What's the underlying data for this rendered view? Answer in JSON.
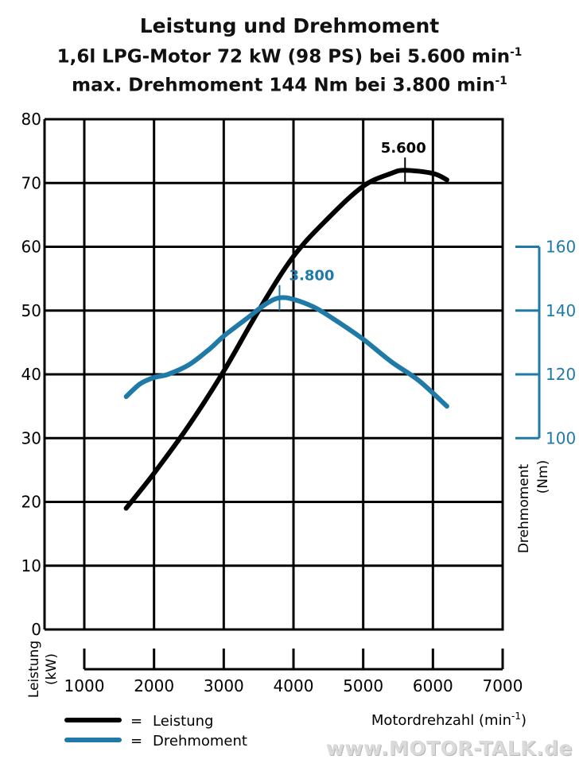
{
  "title": {
    "line1": "Leistung und Drehmoment",
    "line2_main": "1,6l LPG-Motor 72 kW (98 PS) bei 5.600 min",
    "line2_sup": "-1",
    "line3_main": "max. Drehmoment 144 Nm bei 3.800 min",
    "line3_sup": "-1"
  },
  "colors": {
    "power": "#000000",
    "torque": "#1f7aa8",
    "grid": "#000000"
  },
  "chart_data": {
    "type": "line",
    "xlabel": "Motordrehzahl (min",
    "xlabel_sup": "-1",
    "xlabel_end": ")",
    "ylabel_left_line1": "Leistung",
    "ylabel_left_line2": "(kW)",
    "ylabel_right_line1": "Drehmoment",
    "ylabel_right_line2": "(Nm)",
    "xlim": [
      1000,
      7000
    ],
    "ylim_left": [
      0,
      80
    ],
    "ylim_right": [
      100,
      160
    ],
    "x_ticks": [
      1000,
      2000,
      3000,
      4000,
      5000,
      6000,
      7000
    ],
    "y_ticks_left": [
      0,
      10,
      20,
      30,
      40,
      50,
      60,
      70,
      80
    ],
    "y_ticks_right": [
      100,
      120,
      140,
      160
    ],
    "grid": true,
    "series": [
      {
        "name": "Leistung",
        "axis": "left",
        "x": [
          1600,
          2000,
          2500,
          3000,
          3500,
          4000,
          4500,
          5000,
          5400,
          5600,
          6000,
          6200
        ],
        "y": [
          19,
          24.5,
          32,
          40.5,
          50,
          58.5,
          64.5,
          69.5,
          71.5,
          72,
          71.5,
          70.5
        ]
      },
      {
        "name": "Drehmoment",
        "axis": "right",
        "x": [
          1600,
          1800,
          2000,
          2200,
          2500,
          2800,
          3000,
          3300,
          3600,
          3800,
          4000,
          4300,
          4600,
          5000,
          5400,
          5800,
          6200
        ],
        "y": [
          113,
          117,
          119,
          120,
          123,
          128,
          132,
          137,
          142,
          144,
          143.5,
          141,
          137,
          131,
          124,
          118,
          110
        ]
      }
    ],
    "annotations": [
      {
        "text": "5.600",
        "x": 5600,
        "series": "Leistung"
      },
      {
        "text": "3.800",
        "x": 3800,
        "series": "Drehmoment"
      }
    ],
    "legend": {
      "position": "bottom-left",
      "equals": "=",
      "items": [
        "Leistung",
        "Drehmoment"
      ]
    }
  },
  "watermark": "www.MOTOR-TALK.de"
}
